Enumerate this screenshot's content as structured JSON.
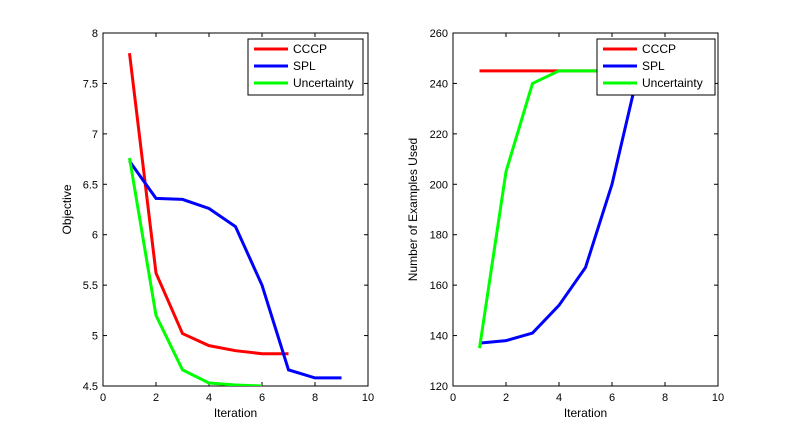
{
  "chart_data": [
    {
      "type": "line",
      "xlabel": "Iteration",
      "ylabel": "Objective",
      "xlim": [
        0,
        10
      ],
      "ylim": [
        4.5,
        8
      ],
      "xticks": [
        0,
        2,
        4,
        6,
        8,
        10
      ],
      "xtick_labels": [
        "0",
        "2",
        "4",
        "6",
        "8",
        "10"
      ],
      "yticks": [
        4.5,
        5,
        5.5,
        6,
        6.5,
        7,
        7.5,
        8
      ],
      "ytick_labels": [
        "4.5",
        "5",
        "5.5",
        "6",
        "6.5",
        "7",
        "7.5",
        "8"
      ],
      "grid": false,
      "legend_position": "top-right",
      "series": [
        {
          "name": "CCCP",
          "color": "#ff0000",
          "x": [
            1,
            2,
            3,
            4,
            5,
            6,
            7
          ],
          "y": [
            7.8,
            5.62,
            5.02,
            4.9,
            4.85,
            4.82,
            4.82
          ]
        },
        {
          "name": "SPL",
          "color": "#0000ff",
          "x": [
            1,
            2,
            3,
            4,
            5,
            6,
            7,
            8,
            9
          ],
          "y": [
            6.73,
            6.36,
            6.35,
            6.26,
            6.08,
            5.5,
            4.66,
            4.58,
            4.58
          ]
        },
        {
          "name": "Uncertainty",
          "color": "#00ff00",
          "x": [
            1,
            2,
            3,
            4,
            5,
            6
          ],
          "y": [
            6.76,
            5.2,
            4.66,
            4.53,
            4.51,
            4.5
          ]
        }
      ]
    },
    {
      "type": "line",
      "xlabel": "Iteration",
      "ylabel": "Number of Examples Used",
      "xlim": [
        0,
        10
      ],
      "ylim": [
        120,
        260
      ],
      "xticks": [
        0,
        2,
        4,
        6,
        8,
        10
      ],
      "xtick_labels": [
        "0",
        "2",
        "4",
        "6",
        "8",
        "10"
      ],
      "yticks": [
        120,
        140,
        160,
        180,
        200,
        220,
        240,
        260
      ],
      "ytick_labels": [
        "120",
        "140",
        "160",
        "180",
        "200",
        "220",
        "240",
        "260"
      ],
      "grid": false,
      "legend_position": "top-right",
      "series": [
        {
          "name": "CCCP",
          "color": "#ff0000",
          "x": [
            1,
            2,
            3,
            4,
            5,
            6,
            7
          ],
          "y": [
            245,
            245,
            245,
            245,
            245,
            245,
            245
          ]
        },
        {
          "name": "SPL",
          "color": "#0000ff",
          "x": [
            1,
            2,
            3,
            4,
            5,
            6,
            7
          ],
          "y": [
            137,
            138,
            141,
            152,
            167,
            200,
            245
          ]
        },
        {
          "name": "Uncertainty",
          "color": "#00ff00",
          "x": [
            1,
            2,
            3,
            4,
            5,
            6,
            7
          ],
          "y": [
            135,
            205,
            240,
            245,
            245,
            245,
            245
          ]
        }
      ]
    }
  ]
}
